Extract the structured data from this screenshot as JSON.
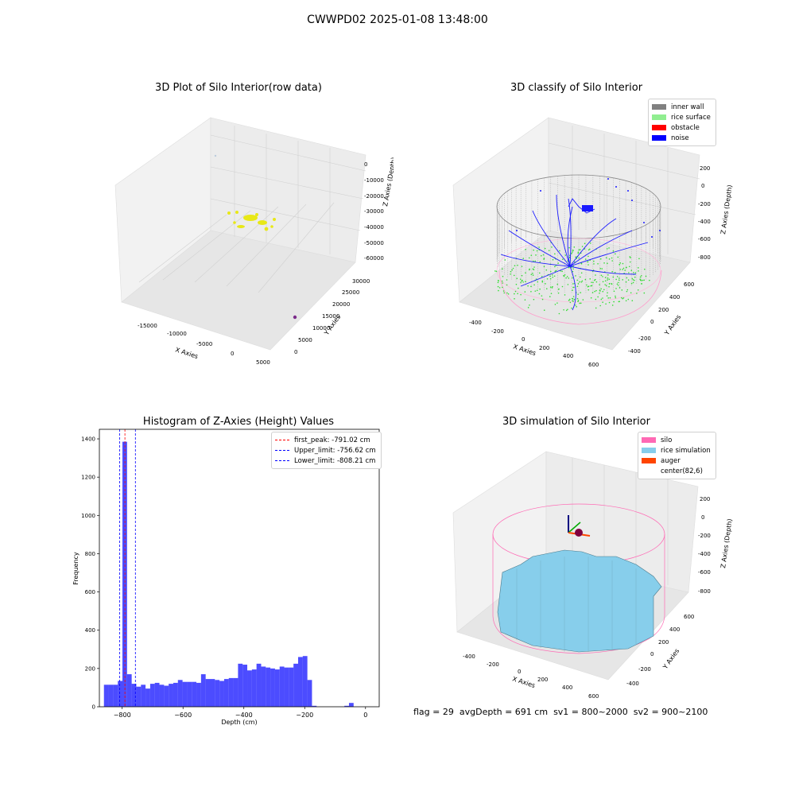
{
  "figure": {
    "suptitle": "CWWPD02 2025-01-08 13:48:00",
    "status": {
      "flag": "flag = 29",
      "avg_depth": "avgDepth = 691 cm",
      "sv1": "sv1 = 800~2000",
      "sv2": "sv2 = 900~2100"
    }
  },
  "chart_data": [
    {
      "type": "scatter",
      "subtype": "3d",
      "title": "3D Plot of Silo Interior(row data)",
      "xlabel": "X Axies",
      "ylabel": "Y Axies",
      "zlabel": "Z Axies (Depth)",
      "xticks": [
        "-15000",
        "-10000",
        "-5000",
        "0",
        "5000"
      ],
      "yticks": [
        "0",
        "5000",
        "10000",
        "15000",
        "20000",
        "25000",
        "30000"
      ],
      "zticks": [
        "0",
        "-10000",
        "-20000",
        "-30000",
        "-40000",
        "-50000",
        "-60000"
      ],
      "series": [
        {
          "color": "#e8e817",
          "points_desc": "cluster"
        },
        {
          "color": "#7b2b8a",
          "points_desc": "outlier"
        }
      ],
      "grid": true
    },
    {
      "type": "scatter",
      "subtype": "3d",
      "title": "3D classify of Silo Interior",
      "xlabel": "X Axies",
      "ylabel": "Y Axies",
      "zlabel": "Z Axies (Depth)",
      "xticks": [
        "-400",
        "-200",
        "0",
        "200",
        "400",
        "600"
      ],
      "yticks": [
        "-400",
        "-200",
        "0",
        "200",
        "400",
        "600"
      ],
      "zticks": [
        "200",
        "0",
        "-200",
        "-400",
        "-600",
        "-800"
      ],
      "legend": [
        {
          "label": "inner wall",
          "color": "#808080"
        },
        {
          "label": "rice surface",
          "color": "#90ee90"
        },
        {
          "label": "obstacle",
          "color": "#ff0000"
        },
        {
          "label": "noise",
          "color": "#0000ff"
        }
      ],
      "legend_position": "top-right",
      "grid": true
    },
    {
      "type": "bar",
      "subtype": "histogram",
      "title": "Histogram of Z-Axies (Height) Values",
      "xlabel": "Depth (cm)",
      "ylabel": "Frequency",
      "xlim": [
        -875,
        45
      ],
      "ylim": [
        0,
        1450
      ],
      "xticks": [
        -800,
        -600,
        -400,
        -200,
        0
      ],
      "yticks": [
        0,
        200,
        400,
        600,
        800,
        1000,
        1200,
        1400
      ],
      "bin_width": 15.2,
      "bin_start": -860,
      "values": [
        115,
        115,
        115,
        135,
        1385,
        170,
        120,
        105,
        115,
        95,
        120,
        125,
        115,
        110,
        120,
        125,
        140,
        130,
        130,
        130,
        125,
        170,
        145,
        145,
        140,
        135,
        145,
        150,
        150,
        225,
        220,
        190,
        195,
        225,
        210,
        205,
        200,
        195,
        210,
        205,
        205,
        225,
        260,
        265,
        140,
        5,
        0,
        0,
        0,
        0,
        0,
        0,
        5,
        20
      ],
      "bar_color": "#0000ff",
      "vlines": [
        {
          "label": "first_peak: -791.02 cm",
          "x": -791.02,
          "color": "#ff0000"
        },
        {
          "label": "Upper_limit: -756.62 cm",
          "x": -756.62,
          "color": "#0000ff"
        },
        {
          "label": "Lower_limit: -808.21 cm",
          "x": -808.21,
          "color": "#0000ff"
        }
      ],
      "legend_position": "top-right"
    },
    {
      "type": "area",
      "subtype": "3d-surface",
      "title": "3D simulation of Silo Interior",
      "xlabel": "X Axies",
      "ylabel": "Y Axies",
      "zlabel": "Z Axies (Depth)",
      "xticks": [
        "-400",
        "-200",
        "0",
        "200",
        "400",
        "600"
      ],
      "yticks": [
        "-400",
        "-200",
        "0",
        "200",
        "400",
        "600"
      ],
      "zticks": [
        "200",
        "0",
        "-200",
        "-400",
        "-600",
        "-800"
      ],
      "legend": [
        {
          "label": "silo",
          "color": "#ff69b4"
        },
        {
          "label": "rice simulation",
          "color": "#87ceeb"
        },
        {
          "label": "auger",
          "color": "#ff4500"
        },
        {
          "label": "center(82,6)",
          "color": "#ffffff"
        }
      ],
      "legend_position": "top-right",
      "grid": true
    }
  ]
}
